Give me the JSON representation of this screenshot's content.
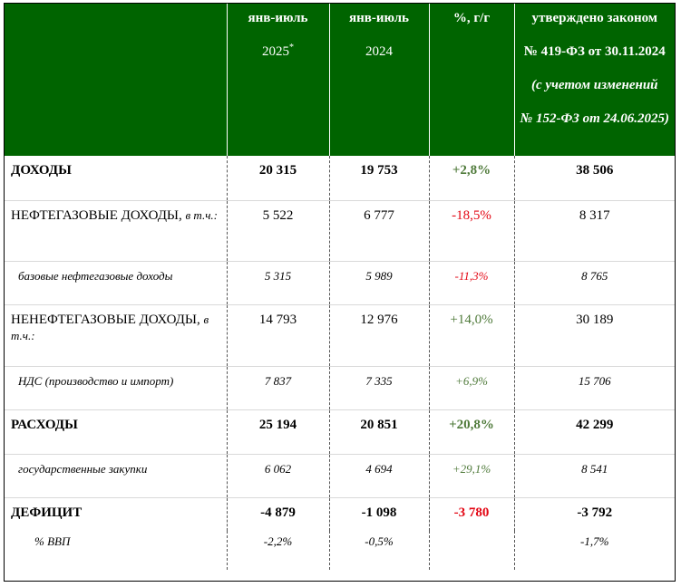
{
  "header": {
    "col1_line1": "янв-июль",
    "col1_line2": "2025",
    "col1_sup": "*",
    "col2_line1": "янв-июль",
    "col2_line2": "2024",
    "col3": "%, г/г",
    "col4_line1": "утверждено законом",
    "col4_line2": "№ 419-ФЗ от 30.11.2024",
    "col4_line3": "(с учетом изменений",
    "col4_line4": "№ 152-ФЗ от 24.06.2025)"
  },
  "rows": [
    {
      "label": "ДОХОДЫ",
      "v2025": "20 315",
      "v2024": "19 753",
      "pct": "+2,8%",
      "law": "38 506"
    },
    {
      "label": "НЕФТЕГАЗОВЫЕ ДОХОДЫ,",
      "label_suffix": "в т.ч.:",
      "v2025": "5 522",
      "v2024": "6 777",
      "pct": "-18,5%",
      "law": "8 317"
    },
    {
      "label": "базовые нефтегазовые доходы",
      "v2025": "5 315",
      "v2024": "5 989",
      "pct": "-11,3%",
      "law": "8 765"
    },
    {
      "label": "НЕНЕФТЕГАЗОВЫЕ ДОХОДЫ,",
      "label_suffix": "в т.ч.:",
      "v2025": "14 793",
      "v2024": "12 976",
      "pct": "+14,0%",
      "law": "30 189"
    },
    {
      "label": "НДС (производство и импорт)",
      "v2025": "7 837",
      "v2024": "7 335",
      "pct": "+6,9%",
      "law": "15 706"
    },
    {
      "label": "РАСХОДЫ",
      "v2025": "25 194",
      "v2024": "20 851",
      "pct": "+20,8%",
      "law": "42 299"
    },
    {
      "label": "государственные закупки",
      "v2025": "6 062",
      "v2024": "4 694",
      "pct": "+29,1%",
      "law": "8 541"
    },
    {
      "label": "ДЕФИЦИТ",
      "v2025": "-4 879",
      "v2024": "-1 098",
      "pct": "-3 780",
      "law": "-3 792"
    },
    {
      "label": "% ВВП",
      "v2025": "-2,2%",
      "v2024": "-0,5%",
      "pct": "",
      "law": "-1,7%"
    }
  ]
}
